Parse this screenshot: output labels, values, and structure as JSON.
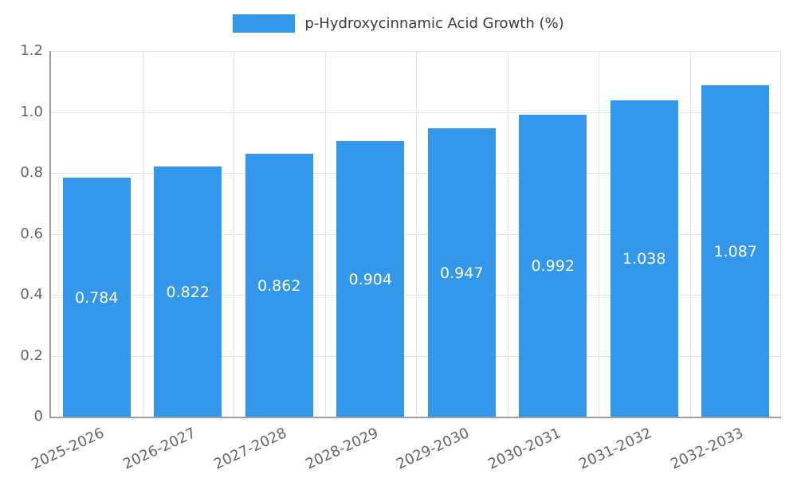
{
  "chart_data": {
    "type": "bar",
    "title": "p-Hydroxycinnamic Acid Growth (%)",
    "categories": [
      "2025-2026",
      "2026-2027",
      "2027-2028",
      "2028-2029",
      "2029-2030",
      "2030-2031",
      "2031-2032",
      "2032-2033"
    ],
    "values": [
      0.784,
      0.822,
      0.862,
      0.904,
      0.947,
      0.992,
      1.038,
      1.087
    ],
    "value_labels": [
      "0.784",
      "0.822",
      "0.862",
      "0.904",
      "0.947",
      "0.992",
      "1.038",
      "1.087"
    ],
    "xlabel": "",
    "ylabel": "",
    "ylim": [
      0,
      1.2
    ],
    "yticks": [
      "0",
      "0.2",
      "0.4",
      "0.6",
      "0.8",
      "1.0",
      "1.2"
    ],
    "grid": "on",
    "legend_position": "top-center",
    "bar_color": "#3398ec",
    "grid_color": "#e5e5e5",
    "axis_color": "#9e9e9e",
    "tick_text_color": "#666666",
    "value_text_color": "#ffffff"
  }
}
